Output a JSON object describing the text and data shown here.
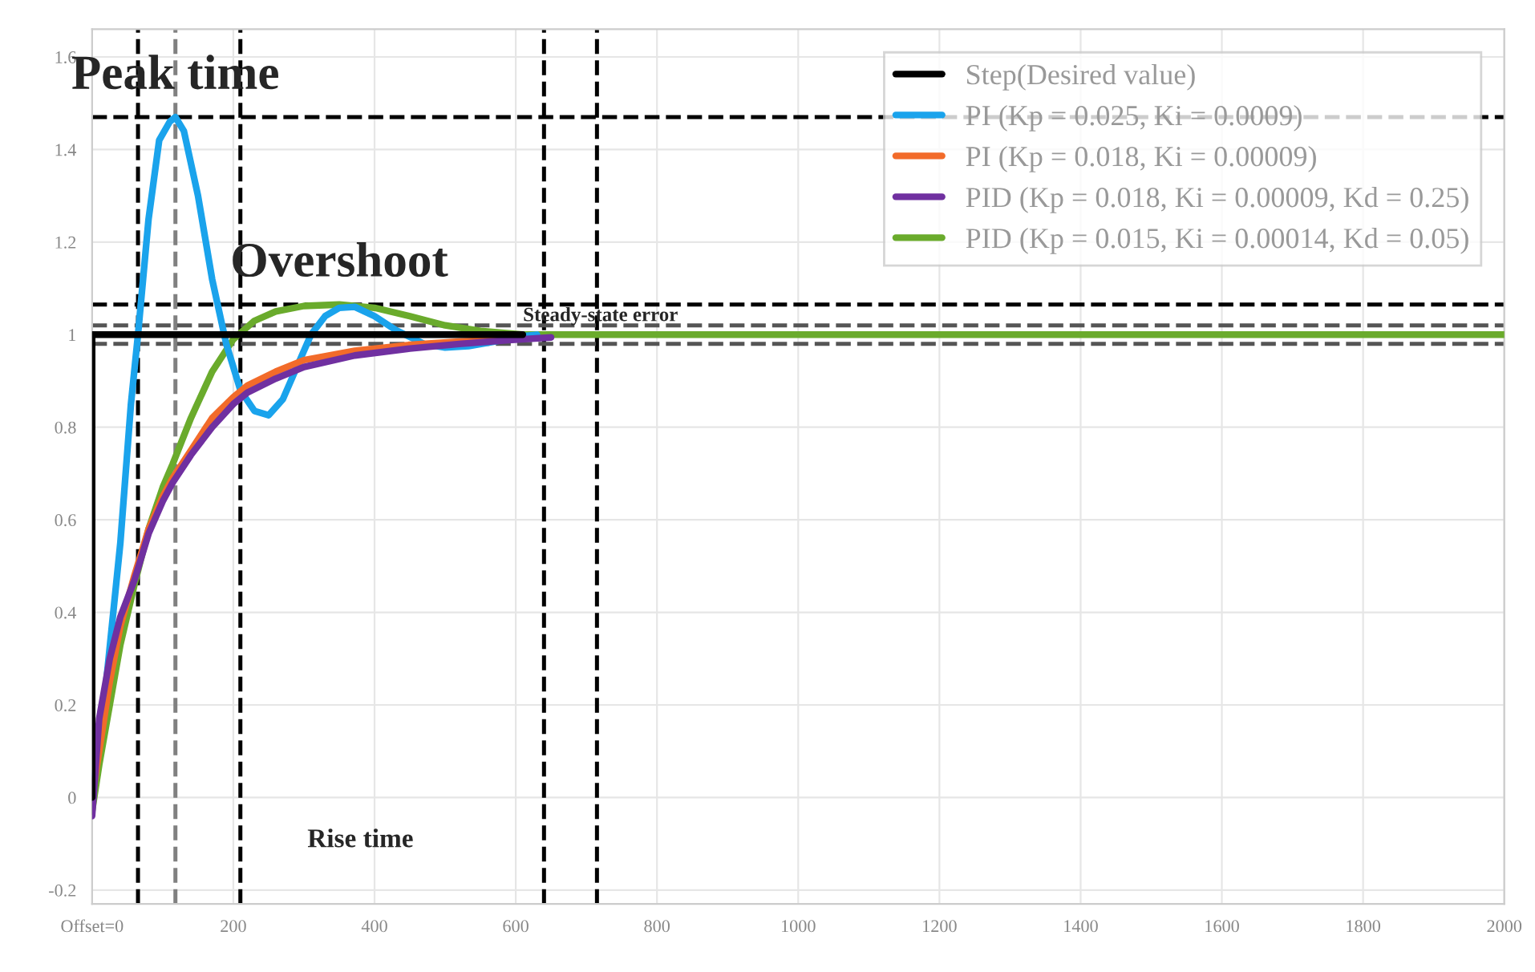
{
  "chart_data": {
    "type": "line",
    "xlim": [
      0,
      2000
    ],
    "ylim": [
      -0.23,
      1.66
    ],
    "xticks": [
      {
        "value": 0,
        "label": "Offset=0"
      },
      200,
      400,
      600,
      800,
      1000,
      1200,
      1400,
      1600,
      1800,
      2000
    ],
    "yticks": [
      {
        "value": -0.2,
        "label": "-0.2"
      },
      0,
      {
        "value": 0.2,
        "label": "0.2"
      },
      {
        "value": 0.4,
        "label": "0.4"
      },
      {
        "value": 0.6,
        "label": "0.6"
      },
      {
        "value": 0.8,
        "label": "0.8"
      },
      1,
      {
        "value": 1.2,
        "label": "1.2"
      },
      {
        "value": 1.4,
        "label": "1.4"
      },
      {
        "value": 1.6,
        "label": "1.6"
      }
    ],
    "grid": true,
    "legend": "top right",
    "line_style": "solid",
    "marker": "none",
    "series": [
      {
        "name": "Step(Desired value)",
        "color": "#000000",
        "x": [
          0,
          0,
          610
        ],
        "values": [
          0,
          1,
          1
        ]
      },
      {
        "name": "PI (Kp = 0.025, Ki = 0.0009)",
        "color": "#1aa3ec",
        "x": [
          0,
          20,
          40,
          55,
          65,
          80,
          95,
          110,
          118,
          130,
          150,
          170,
          190,
          210,
          230,
          250,
          270,
          290,
          310,
          330,
          350,
          372,
          400,
          430,
          470,
          500,
          533,
          570,
          600,
          630
        ],
        "values": [
          0,
          0.25,
          0.55,
          0.85,
          1.0,
          1.25,
          1.42,
          1.46,
          1.47,
          1.44,
          1.3,
          1.12,
          0.98,
          0.88,
          0.835,
          0.826,
          0.86,
          0.93,
          1.0,
          1.04,
          1.058,
          1.06,
          1.04,
          1.01,
          0.98,
          0.972,
          0.975,
          0.985,
          0.995,
          1.0
        ]
      },
      {
        "name": "PI (Kp = 0.018, Ki = 0.00009)",
        "color": "#f26b2a",
        "x": [
          0,
          10,
          25,
          40,
          60,
          80,
          100,
          114,
          140,
          170,
          200,
          220,
          260,
          300,
          372,
          450,
          520,
          590
        ],
        "values": [
          0,
          0.1,
          0.25,
          0.37,
          0.48,
          0.58,
          0.65,
          0.69,
          0.75,
          0.82,
          0.865,
          0.89,
          0.92,
          0.945,
          0.965,
          0.978,
          0.985,
          0.99
        ]
      },
      {
        "name": "PID (Kp = 0.018, Ki = 0.00009, Kd = 0.25)",
        "color": "#7030a0",
        "x": [
          0,
          10,
          25,
          40,
          60,
          80,
          100,
          114,
          140,
          170,
          200,
          220,
          260,
          300,
          372,
          450,
          520,
          590,
          650
        ],
        "values": [
          -0.04,
          0.17,
          0.3,
          0.39,
          0.47,
          0.57,
          0.64,
          0.68,
          0.74,
          0.8,
          0.85,
          0.875,
          0.905,
          0.93,
          0.955,
          0.97,
          0.98,
          0.988,
          0.994
        ]
      },
      {
        "name": "PID (Kp = 0.015, Ki = 0.00014, Kd = 0.05)",
        "color": "#6aab2c",
        "x": [
          0,
          10,
          25,
          40,
          60,
          80,
          100,
          114,
          140,
          170,
          200,
          230,
          260,
          300,
          350,
          400,
          450,
          500,
          550,
          610,
          700,
          800,
          1000,
          1500,
          2000
        ],
        "values": [
          -0.03,
          0.07,
          0.2,
          0.33,
          0.46,
          0.58,
          0.67,
          0.72,
          0.82,
          0.92,
          0.99,
          1.03,
          1.05,
          1.062,
          1.065,
          1.058,
          1.04,
          1.02,
          1.008,
          1.0,
          1.0,
          1.0,
          1.0,
          1.0,
          1.0
        ]
      }
    ],
    "ref_lines": [
      {
        "axis": "y",
        "value": 1.47,
        "color": "#000000",
        "line_style": "dashed"
      },
      {
        "axis": "y",
        "value": 1.065,
        "color": "#000000",
        "line_style": "dashed"
      },
      {
        "axis": "x",
        "value": 65,
        "color": "#000000",
        "line_style": "dashed"
      },
      {
        "axis": "x",
        "value": 118,
        "color": "#808080",
        "line_style": "dashed"
      },
      {
        "axis": "x",
        "value": 210,
        "color": "#000000",
        "line_style": "dashed"
      },
      {
        "axis": "x",
        "value": 640,
        "color": "#000000",
        "line_style": "dashed"
      },
      {
        "axis": "x",
        "value": 715,
        "color": "#000000",
        "line_style": "dashed"
      },
      {
        "axis": "y",
        "value": 1.02,
        "color": "#555555",
        "line_style": "dashed",
        "label": "Steady-state error"
      },
      {
        "axis": "y",
        "value": 0.98,
        "color": "#555555",
        "line_style": "dashed"
      }
    ],
    "annotations": [
      {
        "text": "Peak time",
        "x": 118,
        "y": 1.47
      },
      {
        "text": "Overshoot",
        "x": 350,
        "y": 1.065
      },
      "Rise time"
    ]
  }
}
